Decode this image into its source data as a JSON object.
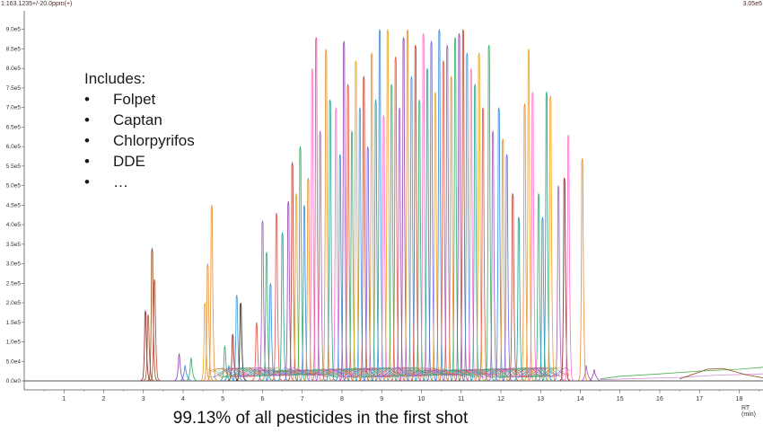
{
  "header": {
    "left_text": "1:163.1235+/-20.0ppm(+)",
    "right_text": "3.05e5"
  },
  "annotation": {
    "title": "Includes:",
    "items": [
      "Folpet",
      "Captan",
      "Chlorpyrifos",
      "DDE",
      "…"
    ],
    "bullet": "•"
  },
  "caption": "99.13% of all pesticides in the first shot",
  "chart_data": {
    "type": "line",
    "title": "",
    "xlabel": "RT (min)",
    "ylabel": "",
    "xlim": [
      0,
      18.6
    ],
    "ylim": [
      0,
      920000
    ],
    "grid": false,
    "x_ticks": [
      1,
      2,
      3,
      4,
      5,
      6,
      7,
      8,
      9,
      10,
      11,
      12,
      13,
      14,
      15,
      16,
      17,
      18
    ],
    "y_ticks": [
      {
        "value": 0,
        "label": "0.0e0"
      },
      {
        "value": 50000,
        "label": "5.0e4"
      },
      {
        "value": 100000,
        "label": "1.0e5"
      },
      {
        "value": 150000,
        "label": "1.5e5"
      },
      {
        "value": 200000,
        "label": "2.0e5"
      },
      {
        "value": 250000,
        "label": "2.5e5"
      },
      {
        "value": 300000,
        "label": "3.0e5"
      },
      {
        "value": 350000,
        "label": "3.5e5"
      },
      {
        "value": 400000,
        "label": "4.0e5"
      },
      {
        "value": 450000,
        "label": "4.5e5"
      },
      {
        "value": 500000,
        "label": "5.0e5"
      },
      {
        "value": 550000,
        "label": "5.5e5"
      },
      {
        "value": 600000,
        "label": "6.0e5"
      },
      {
        "value": 650000,
        "label": "6.5e5"
      },
      {
        "value": 700000,
        "label": "7.0e5"
      },
      {
        "value": 750000,
        "label": "7.5e5"
      },
      {
        "value": 800000,
        "label": "8.0e5"
      },
      {
        "value": 850000,
        "label": "8.5e5"
      },
      {
        "value": 900000,
        "label": "9.0e5"
      }
    ],
    "palette": [
      "#e8892a",
      "#9b59b6",
      "#2e86de",
      "#27ae60",
      "#e74c3c",
      "#8e44ad",
      "#f39c12",
      "#16a085",
      "#c0392b",
      "#ff66cc",
      "#795548",
      "#3498db",
      "#7f8c8d",
      "#d35400",
      "#1abc9c",
      "#e84393",
      "#6c5ce7",
      "#00b894"
    ],
    "peaks": [
      {
        "rt": 3.05,
        "height": 180000,
        "color": "#8b1a1a"
      },
      {
        "rt": 3.12,
        "height": 170000,
        "color": "#a0522d"
      },
      {
        "rt": 3.22,
        "height": 340000,
        "color": "#8b4513"
      },
      {
        "rt": 3.28,
        "height": 260000,
        "color": "#c0392b"
      },
      {
        "rt": 3.9,
        "height": 70000,
        "color": "#8e44ad"
      },
      {
        "rt": 4.05,
        "height": 40000,
        "color": "#2e86de"
      },
      {
        "rt": 4.2,
        "height": 60000,
        "color": "#27ae60"
      },
      {
        "rt": 4.55,
        "height": 200000,
        "color": "#f39c12"
      },
      {
        "rt": 4.62,
        "height": 300000,
        "color": "#e8892a"
      },
      {
        "rt": 4.72,
        "height": 450000,
        "color": "#e8892a"
      },
      {
        "rt": 5.05,
        "height": 90000,
        "color": "#27ae60"
      },
      {
        "rt": 5.15,
        "height": 40000,
        "color": "#2e86de"
      },
      {
        "rt": 5.25,
        "height": 120000,
        "color": "#8b1a1a"
      },
      {
        "rt": 5.35,
        "height": 220000,
        "color": "#3498db"
      },
      {
        "rt": 5.45,
        "height": 200000,
        "color": "#1a1a1a"
      },
      {
        "rt": 5.85,
        "height": 150000,
        "color": "#e74c3c"
      },
      {
        "rt": 6.0,
        "height": 410000,
        "color": "#9b59b6"
      },
      {
        "rt": 6.1,
        "height": 330000,
        "color": "#27ae60"
      },
      {
        "rt": 6.2,
        "height": 250000,
        "color": "#2e86de"
      },
      {
        "rt": 6.35,
        "height": 430000,
        "color": "#e74c3c"
      },
      {
        "rt": 6.5,
        "height": 380000,
        "color": "#16a085"
      },
      {
        "rt": 6.65,
        "height": 460000,
        "color": "#8e44ad"
      },
      {
        "rt": 6.75,
        "height": 560000,
        "color": "#c0392b"
      },
      {
        "rt": 6.85,
        "height": 480000,
        "color": "#f39c12"
      },
      {
        "rt": 6.95,
        "height": 600000,
        "color": "#27ae60"
      },
      {
        "rt": 7.05,
        "height": 450000,
        "color": "#2e86de"
      },
      {
        "rt": 7.15,
        "height": 520000,
        "color": "#e8892a"
      },
      {
        "rt": 7.25,
        "height": 800000,
        "color": "#ff66cc"
      },
      {
        "rt": 7.35,
        "height": 880000,
        "color": "#e84393"
      },
      {
        "rt": 7.45,
        "height": 640000,
        "color": "#9b59b6"
      },
      {
        "rt": 7.6,
        "height": 850000,
        "color": "#e8892a"
      },
      {
        "rt": 7.7,
        "height": 720000,
        "color": "#16a085"
      },
      {
        "rt": 7.85,
        "height": 700000,
        "color": "#ff66cc"
      },
      {
        "rt": 7.95,
        "height": 580000,
        "color": "#2e86de"
      },
      {
        "rt": 8.05,
        "height": 870000,
        "color": "#8e44ad"
      },
      {
        "rt": 8.15,
        "height": 760000,
        "color": "#e74c3c"
      },
      {
        "rt": 8.25,
        "height": 640000,
        "color": "#27ae60"
      },
      {
        "rt": 8.35,
        "height": 820000,
        "color": "#f39c12"
      },
      {
        "rt": 8.45,
        "height": 700000,
        "color": "#3498db"
      },
      {
        "rt": 8.55,
        "height": 780000,
        "color": "#c0392b"
      },
      {
        "rt": 8.65,
        "height": 600000,
        "color": "#6c5ce7"
      },
      {
        "rt": 8.75,
        "height": 840000,
        "color": "#e8892a"
      },
      {
        "rt": 8.85,
        "height": 720000,
        "color": "#16a085"
      },
      {
        "rt": 8.95,
        "height": 900000,
        "color": "#2e86de"
      },
      {
        "rt": 9.05,
        "height": 680000,
        "color": "#ff66cc"
      },
      {
        "rt": 9.15,
        "height": 900000,
        "color": "#f39c12"
      },
      {
        "rt": 9.25,
        "height": 760000,
        "color": "#27ae60"
      },
      {
        "rt": 9.35,
        "height": 830000,
        "color": "#e74c3c"
      },
      {
        "rt": 9.45,
        "height": 700000,
        "color": "#9b59b6"
      },
      {
        "rt": 9.55,
        "height": 880000,
        "color": "#8e44ad"
      },
      {
        "rt": 9.65,
        "height": 900000,
        "color": "#e8892a"
      },
      {
        "rt": 9.75,
        "height": 780000,
        "color": "#3498db"
      },
      {
        "rt": 9.85,
        "height": 860000,
        "color": "#c0392b"
      },
      {
        "rt": 9.95,
        "height": 720000,
        "color": "#27ae60"
      },
      {
        "rt": 10.05,
        "height": 890000,
        "color": "#ff66cc"
      },
      {
        "rt": 10.15,
        "height": 800000,
        "color": "#16a085"
      },
      {
        "rt": 10.25,
        "height": 870000,
        "color": "#6c5ce7"
      },
      {
        "rt": 10.35,
        "height": 740000,
        "color": "#f39c12"
      },
      {
        "rt": 10.45,
        "height": 900000,
        "color": "#2e86de"
      },
      {
        "rt": 10.55,
        "height": 820000,
        "color": "#e74c3c"
      },
      {
        "rt": 10.65,
        "height": 860000,
        "color": "#9b59b6"
      },
      {
        "rt": 10.75,
        "height": 780000,
        "color": "#e8892a"
      },
      {
        "rt": 10.85,
        "height": 880000,
        "color": "#27ae60"
      },
      {
        "rt": 10.95,
        "height": 890000,
        "color": "#8e44ad"
      },
      {
        "rt": 11.05,
        "height": 900000,
        "color": "#c0392b"
      },
      {
        "rt": 11.15,
        "height": 840000,
        "color": "#3498db"
      },
      {
        "rt": 11.25,
        "height": 800000,
        "color": "#ff66cc"
      },
      {
        "rt": 11.35,
        "height": 760000,
        "color": "#16a085"
      },
      {
        "rt": 11.45,
        "height": 840000,
        "color": "#f39c12"
      },
      {
        "rt": 11.55,
        "height": 700000,
        "color": "#e74c3c"
      },
      {
        "rt": 11.7,
        "height": 860000,
        "color": "#27ae60"
      },
      {
        "rt": 11.8,
        "height": 640000,
        "color": "#9b59b6"
      },
      {
        "rt": 11.95,
        "height": 700000,
        "color": "#2e86de"
      },
      {
        "rt": 12.05,
        "height": 620000,
        "color": "#e8892a"
      },
      {
        "rt": 12.15,
        "height": 580000,
        "color": "#6c5ce7"
      },
      {
        "rt": 12.3,
        "height": 480000,
        "color": "#c0392b"
      },
      {
        "rt": 12.45,
        "height": 420000,
        "color": "#16a085"
      },
      {
        "rt": 12.6,
        "height": 710000,
        "color": "#e8892a"
      },
      {
        "rt": 12.7,
        "height": 850000,
        "color": "#f39c12"
      },
      {
        "rt": 12.8,
        "height": 740000,
        "color": "#ff66cc"
      },
      {
        "rt": 12.95,
        "height": 480000,
        "color": "#27ae60"
      },
      {
        "rt": 13.05,
        "height": 420000,
        "color": "#2e86de"
      },
      {
        "rt": 13.15,
        "height": 740000,
        "color": "#16a085"
      },
      {
        "rt": 13.25,
        "height": 730000,
        "color": "#f39c12"
      },
      {
        "rt": 13.45,
        "height": 500000,
        "color": "#9b59b6"
      },
      {
        "rt": 13.6,
        "height": 520000,
        "color": "#8b1a1a"
      },
      {
        "rt": 13.7,
        "height": 630000,
        "color": "#ff66cc"
      },
      {
        "rt": 14.05,
        "height": 570000,
        "color": "#e8892a"
      },
      {
        "rt": 14.15,
        "height": 40000,
        "color": "#9b59b6"
      },
      {
        "rt": 14.35,
        "height": 30000,
        "color": "#8e44ad"
      }
    ],
    "baseline_series": [
      {
        "name": "",
        "color": "#4caf50",
        "points": [
          [
            14.5,
            5000
          ],
          [
            15,
            12000
          ],
          [
            16,
            18000
          ],
          [
            17,
            25000
          ],
          [
            18,
            30000
          ],
          [
            18.6,
            35000
          ]
        ]
      },
      {
        "name": "",
        "color": "#d58fd5",
        "points": [
          [
            14.5,
            3000
          ],
          [
            15.5,
            6000
          ],
          [
            16.5,
            9000
          ],
          [
            17.5,
            15000
          ],
          [
            18.6,
            18000
          ]
        ]
      },
      {
        "name": "",
        "color": "#8b4513",
        "points": [
          [
            16.5,
            5000
          ],
          [
            17.2,
            30000
          ],
          [
            17.6,
            32000
          ],
          [
            18.2,
            15000
          ],
          [
            18.6,
            8000
          ]
        ]
      }
    ]
  }
}
